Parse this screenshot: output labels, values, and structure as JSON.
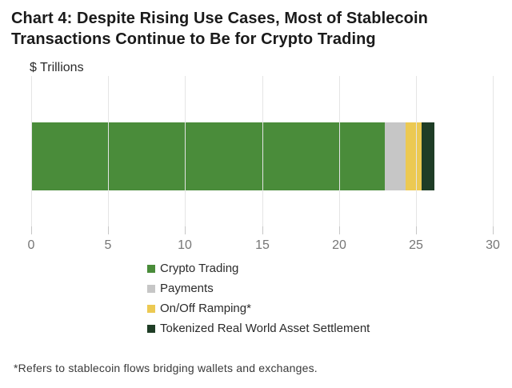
{
  "title": {
    "line1": "Chart 4: Despite Rising Use Cases, Most of Stablecoin",
    "line2": "Transactions Continue to Be for Crypto Trading"
  },
  "axis_unit_label": "$ Trillions",
  "footnote": "*Refers to stablecoin flows bridging wallets and exchanges.",
  "colors": {
    "crypto_trading": "#4a8c3a",
    "payments": "#c6c6c6",
    "on_off_ramping": "#ecc952",
    "tokenized_rwa": "#1f3d26",
    "gridline": "#e4e4e4",
    "tick": "#c6c6c6",
    "tick_label": "#767676"
  },
  "chart_data": {
    "type": "bar",
    "orientation": "horizontal",
    "stacked": true,
    "title": "Chart 4: Despite Rising Use Cases, Most of Stablecoin Transactions Continue to Be for Crypto Trading",
    "xlabel": "$ Trillions",
    "ylabel": "",
    "xlim": [
      0,
      30
    ],
    "x_ticks": [
      0,
      5,
      10,
      15,
      20,
      25,
      30
    ],
    "grid": true,
    "legend_position": "bottom-left",
    "series": [
      {
        "name": "Crypto Trading",
        "value": 23.0,
        "color": "#4a8c3a"
      },
      {
        "name": "Payments",
        "value": 1.35,
        "color": "#c6c6c6"
      },
      {
        "name": "On/Off Ramping*",
        "value": 1.0,
        "color": "#ecc952"
      },
      {
        "name": "Tokenized Real World Asset Settlement",
        "value": 0.85,
        "color": "#1f3d26"
      }
    ],
    "total": 26.2
  }
}
